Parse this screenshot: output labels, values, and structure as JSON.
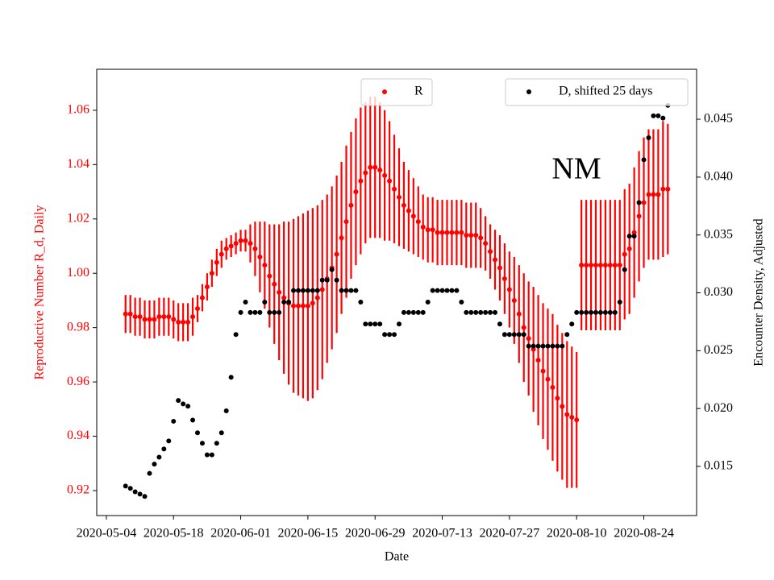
{
  "chart_data": {
    "type": "scatter",
    "x": [
      "2020-05-08",
      "2020-05-09",
      "2020-05-10",
      "2020-05-11",
      "2020-05-12",
      "2020-05-13",
      "2020-05-14",
      "2020-05-15",
      "2020-05-16",
      "2020-05-17",
      "2020-05-18",
      "2020-05-19",
      "2020-05-20",
      "2020-05-21",
      "2020-05-22",
      "2020-05-23",
      "2020-05-24",
      "2020-05-25",
      "2020-05-26",
      "2020-05-27",
      "2020-05-28",
      "2020-05-29",
      "2020-05-30",
      "2020-05-31",
      "2020-06-01",
      "2020-06-02",
      "2020-06-03",
      "2020-06-04",
      "2020-06-05",
      "2020-06-06",
      "2020-06-07",
      "2020-06-08",
      "2020-06-09",
      "2020-06-10",
      "2020-06-11",
      "2020-06-12",
      "2020-06-13",
      "2020-06-14",
      "2020-06-15",
      "2020-06-16",
      "2020-06-17",
      "2020-06-18",
      "2020-06-19",
      "2020-06-20",
      "2020-06-21",
      "2020-06-22",
      "2020-06-23",
      "2020-06-24",
      "2020-06-25",
      "2020-06-26",
      "2020-06-27",
      "2020-06-28",
      "2020-06-29",
      "2020-06-30",
      "2020-07-01",
      "2020-07-02",
      "2020-07-03",
      "2020-07-04",
      "2020-07-05",
      "2020-07-06",
      "2020-07-07",
      "2020-07-08",
      "2020-07-09",
      "2020-07-10",
      "2020-07-11",
      "2020-07-12",
      "2020-07-13",
      "2020-07-14",
      "2020-07-15",
      "2020-07-16",
      "2020-07-17",
      "2020-07-18",
      "2020-07-19",
      "2020-07-20",
      "2020-07-21",
      "2020-07-22",
      "2020-07-23",
      "2020-07-24",
      "2020-07-25",
      "2020-07-26",
      "2020-07-27",
      "2020-07-28",
      "2020-07-29",
      "2020-07-30",
      "2020-07-31",
      "2020-08-01",
      "2020-08-02",
      "2020-08-03",
      "2020-08-04",
      "2020-08-05",
      "2020-08-06",
      "2020-08-07",
      "2020-08-08",
      "2020-08-09",
      "2020-08-10",
      "2020-08-11",
      "2020-08-12",
      "2020-08-13",
      "2020-08-14",
      "2020-08-15",
      "2020-08-16",
      "2020-08-17",
      "2020-08-18",
      "2020-08-19",
      "2020-08-20",
      "2020-08-21",
      "2020-08-22",
      "2020-08-23",
      "2020-08-24",
      "2020-08-25",
      "2020-08-26",
      "2020-08-27",
      "2020-08-28",
      "2020-08-29"
    ],
    "series": [
      {
        "name": "R",
        "color": "#ff0000",
        "axis": "y",
        "values": [
          0.985,
          0.985,
          0.984,
          0.984,
          0.983,
          0.983,
          0.983,
          0.984,
          0.984,
          0.984,
          0.983,
          0.982,
          0.982,
          0.982,
          0.984,
          0.987,
          0.991,
          0.995,
          1.0,
          1.004,
          1.007,
          1.009,
          1.01,
          1.011,
          1.012,
          1.012,
          1.011,
          1.009,
          1.006,
          1.003,
          0.999,
          0.996,
          0.993,
          0.991,
          0.989,
          0.988,
          0.988,
          0.988,
          0.988,
          0.989,
          0.991,
          0.994,
          0.998,
          1.002,
          1.007,
          1.013,
          1.019,
          1.025,
          1.03,
          1.034,
          1.037,
          1.039,
          1.039,
          1.038,
          1.036,
          1.034,
          1.031,
          1.028,
          1.025,
          1.023,
          1.021,
          1.019,
          1.017,
          1.016,
          1.016,
          1.015,
          1.015,
          1.015,
          1.015,
          1.015,
          1.015,
          1.014,
          1.014,
          1.014,
          1.013,
          1.011,
          1.008,
          1.005,
          1.002,
          0.998,
          0.994,
          0.99,
          0.985,
          0.98,
          0.976,
          0.972,
          0.968,
          0.964,
          0.961,
          0.958,
          0.954,
          0.951,
          0.948,
          0.947,
          0.946,
          1.003,
          1.003,
          1.003,
          1.003,
          1.003,
          1.003,
          1.003,
          1.003,
          1.003,
          1.007,
          1.009,
          1.015,
          1.021,
          1.026,
          1.029,
          1.029,
          1.029,
          1.031,
          1.031
        ],
        "errors": [
          0.007,
          0.007,
          0.007,
          0.007,
          0.007,
          0.007,
          0.007,
          0.007,
          0.007,
          0.007,
          0.007,
          0.007,
          0.007,
          0.007,
          0.007,
          0.005,
          0.005,
          0.005,
          0.005,
          0.005,
          0.005,
          0.004,
          0.004,
          0.004,
          0.004,
          0.004,
          0.007,
          0.01,
          0.013,
          0.016,
          0.019,
          0.022,
          0.025,
          0.028,
          0.03,
          0.032,
          0.033,
          0.034,
          0.035,
          0.035,
          0.034,
          0.033,
          0.031,
          0.03,
          0.029,
          0.028,
          0.028,
          0.027,
          0.027,
          0.027,
          0.026,
          0.026,
          0.026,
          0.025,
          0.024,
          0.022,
          0.02,
          0.018,
          0.016,
          0.015,
          0.014,
          0.013,
          0.012,
          0.012,
          0.012,
          0.012,
          0.012,
          0.012,
          0.012,
          0.012,
          0.012,
          0.012,
          0.012,
          0.012,
          0.011,
          0.01,
          0.01,
          0.011,
          0.012,
          0.013,
          0.014,
          0.016,
          0.018,
          0.02,
          0.021,
          0.023,
          0.024,
          0.025,
          0.026,
          0.027,
          0.027,
          0.027,
          0.027,
          0.026,
          0.025,
          0.024,
          0.024,
          0.024,
          0.024,
          0.024,
          0.024,
          0.024,
          0.024,
          0.024,
          0.024,
          0.024,
          0.024,
          0.024,
          0.024,
          0.024,
          0.024,
          0.024,
          0.025,
          0.024
        ]
      },
      {
        "name": "D, shifted 25 days",
        "color": "#000000",
        "axis": "y2",
        "values": [
          0.0133,
          0.0131,
          0.0128,
          0.0126,
          0.0124,
          0.0144,
          0.0152,
          0.0158,
          0.0165,
          0.0172,
          0.0189,
          0.0207,
          0.0204,
          0.0202,
          0.019,
          0.0179,
          0.017,
          0.016,
          0.016,
          0.017,
          0.0179,
          0.0198,
          0.0227,
          0.0264,
          0.0283,
          0.0292,
          0.0283,
          0.0283,
          0.0283,
          0.0292,
          0.0283,
          0.0283,
          0.0283,
          0.0292,
          0.0292,
          0.0302,
          0.0302,
          0.0302,
          0.0302,
          0.0302,
          0.0302,
          0.0311,
          0.0311,
          0.032,
          0.0311,
          0.0302,
          0.0302,
          0.0302,
          0.0302,
          0.0292,
          0.0273,
          0.0273,
          0.0273,
          0.0273,
          0.0264,
          0.0264,
          0.0264,
          0.0273,
          0.0283,
          0.0283,
          0.0283,
          0.0283,
          0.0283,
          0.0292,
          0.0302,
          0.0302,
          0.0302,
          0.0302,
          0.0302,
          0.0302,
          0.0292,
          0.0283,
          0.0283,
          0.0283,
          0.0283,
          0.0283,
          0.0283,
          0.0283,
          0.0273,
          0.0264,
          0.0264,
          0.0264,
          0.0264,
          0.0264,
          0.0254,
          0.0254,
          0.0254,
          0.0254,
          0.0254,
          0.0254,
          0.0254,
          0.0254,
          0.0264,
          0.0273,
          0.0283,
          0.0283,
          0.0283,
          0.0283,
          0.0283,
          0.0283,
          0.0283,
          0.0283,
          0.0283,
          0.0292,
          0.032,
          0.0349,
          0.0349,
          0.0378,
          0.0415,
          0.0434,
          0.0453,
          0.0453,
          0.0451,
          0.0462
        ]
      }
    ],
    "annotation": "NM",
    "xlabel": "Date",
    "ylabel": "Reproductive Number R_d, Daily",
    "y2label": "Encounter Density, Adjusted",
    "xlim": [
      "2020-05-02",
      "2020-09-04"
    ],
    "xticks": [
      "2020-05-04",
      "2020-05-18",
      "2020-06-01",
      "2020-06-15",
      "2020-06-29",
      "2020-07-13",
      "2020-07-27",
      "2020-08-10",
      "2020-08-24"
    ],
    "ylim": [
      0.9108,
      1.0751
    ],
    "yticks": [
      0.92,
      0.94,
      0.96,
      0.98,
      {
        "value": 1,
        "label": "1.00"
      },
      1.02,
      1.04,
      1.06
    ],
    "y2lim": [
      0.01075,
      0.04932
    ],
    "y2ticks": [
      0.015,
      {
        "value": 0.02,
        "label": "0.020"
      },
      0.025,
      {
        "value": 0.03,
        "label": "0.030"
      },
      0.035,
      {
        "value": 0.04,
        "label": "0.040"
      },
      0.045
    ]
  }
}
